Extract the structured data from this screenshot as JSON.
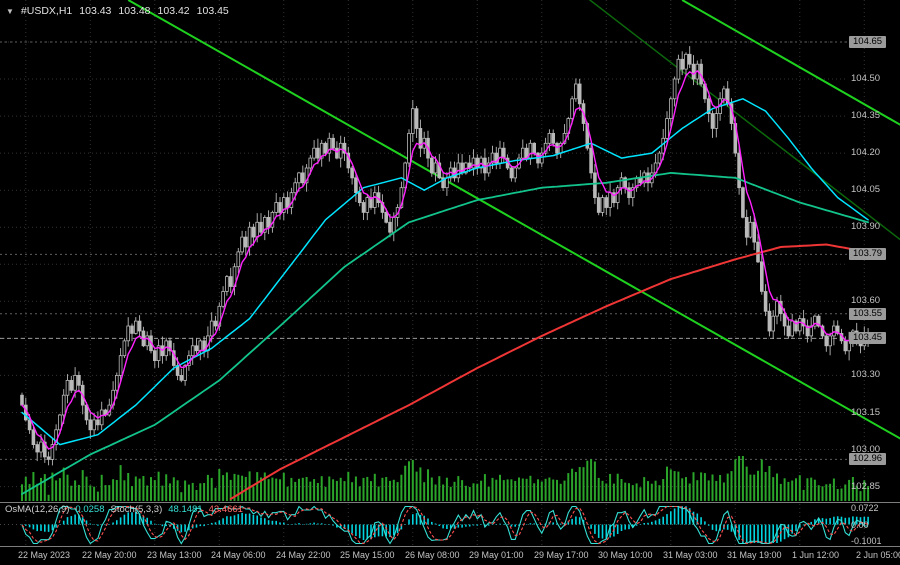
{
  "header": {
    "dropdown_glyph": "▼",
    "symbol": "#USDX,H1",
    "open": "103.43",
    "high": "103.48",
    "low": "103.42",
    "close": "103.45"
  },
  "colors": {
    "grid": "#333333",
    "candle": "#b9b9b9",
    "bull_fill": "#000000",
    "bear_fill": "#b9b9b9",
    "separator": "#7d7d7d",
    "level_line": "#5f5f5f",
    "current_price_line": "#9a9a9a",
    "box_bg": "#9b9b9b",
    "axis_text": "#c4c4c4"
  },
  "price_axis": {
    "labels": [
      {
        "text": "104.65",
        "price": 104.65,
        "boxed": true
      },
      {
        "text": "104.50",
        "price": 104.5,
        "boxed": false
      },
      {
        "text": "104.35",
        "price": 104.35,
        "boxed": false
      },
      {
        "text": "104.20",
        "price": 104.2,
        "boxed": false
      },
      {
        "text": "104.05",
        "price": 104.05,
        "boxed": false
      },
      {
        "text": "103.90",
        "price": 103.9,
        "boxed": false
      },
      {
        "text": "103.79",
        "price": 103.79,
        "boxed": true
      },
      {
        "text": "103.60",
        "price": 103.6,
        "boxed": false
      },
      {
        "text": "103.55",
        "price": 103.55,
        "boxed": true
      },
      {
        "text": "103.45",
        "price": 103.45,
        "boxed": true
      },
      {
        "text": "103.30",
        "price": 103.3,
        "boxed": false
      },
      {
        "text": "103.15",
        "price": 103.15,
        "boxed": false
      },
      {
        "text": "103.00",
        "price": 103.0,
        "boxed": false
      },
      {
        "text": "102.96",
        "price": 102.96,
        "boxed": true
      },
      {
        "text": "102.85",
        "price": 102.85,
        "boxed": false
      }
    ]
  },
  "time_axis": {
    "labels": [
      {
        "text": "22 May 2023",
        "idx": 1
      },
      {
        "text": "22 May 20:00",
        "idx": 18
      },
      {
        "text": "23 May 13:00",
        "idx": 35
      },
      {
        "text": "24 May 06:00",
        "idx": 52
      },
      {
        "text": "24 May 22:00",
        "idx": 69
      },
      {
        "text": "25 May 15:00",
        "idx": 86
      },
      {
        "text": "26 May 08:00",
        "idx": 103
      },
      {
        "text": "29 May 01:00",
        "idx": 120
      },
      {
        "text": "29 May 17:00",
        "idx": 137
      },
      {
        "text": "30 May 10:00",
        "idx": 154
      },
      {
        "text": "31 May 03:00",
        "idx": 171
      },
      {
        "text": "31 May 19:00",
        "idx": 188
      },
      {
        "text": "1 Jun 12:00",
        "idx": 205
      },
      {
        "text": "2 Jun 05:00",
        "idx": 222
      }
    ]
  },
  "indicator": {
    "osma_label": "OsMA(12,26,9)",
    "osma_value": "0.0258",
    "stoch_label": "Stoch(5,3,3)",
    "stoch_value_k": "48.1481",
    "stoch_value_d": "43.4661",
    "axis": [
      {
        "text": "0.0722",
        "pos": "max"
      },
      {
        "text": "0.00",
        "pos": "zero"
      },
      {
        "text": "-0.1001",
        "pos": "min"
      }
    ]
  },
  "chart_data": {
    "type": "candlestick",
    "symbol": "#USDX",
    "period": "H1",
    "title": "#USDX,H1 103.43 103.48 103.42 103.45",
    "ylim": [
      102.78,
      104.82
    ],
    "grid_prices": [
      102.85,
      103.0,
      103.15,
      103.3,
      103.45,
      103.6,
      103.75,
      103.9,
      104.05,
      104.2,
      104.35,
      104.5,
      104.65
    ],
    "levels": [
      104.65,
      103.79,
      103.55,
      102.96
    ],
    "current_price": 103.45,
    "first_open": 103.22,
    "closes": [
      103.18,
      103.12,
      103.08,
      103.02,
      102.99,
      103.03,
      102.97,
      102.96,
      103.02,
      103.08,
      103.14,
      103.22,
      103.28,
      103.24,
      103.3,
      103.26,
      103.18,
      103.12,
      103.08,
      103.12,
      103.1,
      103.16,
      103.14,
      103.18,
      103.24,
      103.3,
      103.38,
      103.44,
      103.5,
      103.47,
      103.52,
      103.48,
      103.42,
      103.46,
      103.4,
      103.36,
      103.42,
      103.38,
      103.44,
      103.4,
      103.34,
      103.3,
      103.28,
      103.34,
      103.38,
      103.42,
      103.4,
      103.44,
      103.4,
      103.46,
      103.52,
      103.5,
      103.58,
      103.64,
      103.7,
      103.66,
      103.74,
      103.8,
      103.86,
      103.82,
      103.9,
      103.86,
      103.92,
      103.88,
      103.94,
      103.9,
      103.96,
      104.0,
      103.96,
      104.02,
      103.98,
      104.04,
      104.08,
      104.12,
      104.08,
      104.14,
      104.18,
      104.22,
      104.18,
      104.24,
      104.2,
      104.26,
      104.22,
      104.18,
      104.24,
      104.2,
      104.14,
      104.1,
      104.04,
      104.0,
      103.96,
      104.02,
      103.98,
      104.04,
      104.0,
      103.96,
      103.92,
      103.88,
      103.94,
      103.98,
      104.06,
      104.16,
      104.28,
      104.38,
      104.3,
      104.22,
      104.26,
      104.18,
      104.12,
      104.16,
      104.1,
      104.06,
      104.1,
      104.14,
      104.1,
      104.16,
      104.12,
      104.16,
      104.14,
      104.18,
      104.14,
      104.18,
      104.12,
      104.16,
      104.2,
      104.16,
      104.22,
      104.18,
      104.14,
      104.1,
      104.14,
      104.18,
      104.22,
      104.18,
      104.24,
      104.2,
      104.16,
      104.2,
      104.24,
      104.28,
      104.24,
      104.2,
      104.24,
      104.28,
      104.34,
      104.42,
      104.48,
      104.4,
      104.32,
      104.22,
      104.12,
      104.02,
      103.96,
      104.02,
      103.98,
      104.04,
      104.0,
      104.06,
      104.1,
      104.06,
      104.02,
      104.06,
      104.1,
      104.08,
      104.12,
      104.08,
      104.12,
      104.16,
      104.2,
      104.26,
      104.34,
      104.42,
      104.5,
      104.58,
      104.54,
      104.6,
      104.56,
      104.5,
      104.56,
      104.48,
      104.42,
      104.36,
      104.3,
      104.36,
      104.42,
      104.46,
      104.4,
      104.32,
      104.2,
      104.06,
      103.94,
      103.86,
      103.92,
      103.84,
      103.76,
      103.64,
      103.56,
      103.48,
      103.54,
      103.6,
      103.55,
      103.5,
      103.46,
      103.52,
      103.48,
      103.53,
      103.5,
      103.46,
      103.5,
      103.54,
      103.5,
      103.46,
      103.42,
      103.46,
      103.5,
      103.47,
      103.44,
      103.4,
      103.44,
      103.48,
      103.44,
      103.42,
      103.46,
      103.45
    ],
    "volume_color": "#2aa52a",
    "moving_averages": [
      {
        "name": "ma-long-red",
        "color": "#ef3535",
        "width": 2,
        "keypoints": [
          [
            55,
            102.8
          ],
          [
            68,
            102.92
          ],
          [
            85,
            103.05
          ],
          [
            102,
            103.18
          ],
          [
            120,
            103.33
          ],
          [
            137,
            103.46
          ],
          [
            154,
            103.58
          ],
          [
            171,
            103.69
          ],
          [
            188,
            103.77
          ],
          [
            200,
            103.82
          ],
          [
            212,
            103.83
          ],
          [
            223,
            103.8
          ]
        ]
      },
      {
        "name": "ma-slow-green",
        "color": "#12c48b",
        "width": 1.8,
        "keypoints": [
          [
            0,
            102.82
          ],
          [
            18,
            102.98
          ],
          [
            35,
            103.1
          ],
          [
            52,
            103.28
          ],
          [
            68,
            103.5
          ],
          [
            85,
            103.74
          ],
          [
            102,
            103.92
          ],
          [
            120,
            104.01
          ],
          [
            137,
            104.06
          ],
          [
            154,
            104.08
          ],
          [
            171,
            104.12
          ],
          [
            188,
            104.1
          ],
          [
            205,
            104.0
          ],
          [
            223,
            103.92
          ]
        ]
      },
      {
        "name": "ma-mid-cyan",
        "color": "#00e5ff",
        "width": 1.5,
        "keypoints": [
          [
            0,
            103.15
          ],
          [
            10,
            103.02
          ],
          [
            20,
            103.06
          ],
          [
            30,
            103.18
          ],
          [
            40,
            103.33
          ],
          [
            50,
            103.41
          ],
          [
            60,
            103.53
          ],
          [
            70,
            103.73
          ],
          [
            80,
            103.93
          ],
          [
            90,
            104.06
          ],
          [
            100,
            104.1
          ],
          [
            106,
            104.05
          ],
          [
            112,
            104.1
          ],
          [
            120,
            104.14
          ],
          [
            130,
            104.17
          ],
          [
            140,
            104.19
          ],
          [
            150,
            104.24
          ],
          [
            158,
            104.18
          ],
          [
            166,
            104.2
          ],
          [
            174,
            104.3
          ],
          [
            182,
            104.38
          ],
          [
            190,
            104.42
          ],
          [
            196,
            104.37
          ],
          [
            202,
            104.26
          ],
          [
            208,
            104.14
          ],
          [
            215,
            104.02
          ],
          [
            223,
            103.93
          ]
        ]
      },
      {
        "name": "ma-fast-magenta",
        "color": "#ff22ff",
        "width": 1.4,
        "type": "ema",
        "period": 5
      }
    ],
    "trendlines": [
      {
        "name": "descending-channel-line-a",
        "color": "#1fd11f",
        "width": 2,
        "points": [
          [
            28,
            104.82
          ],
          [
            232,
            103.04
          ]
        ]
      },
      {
        "name": "descending-channel-line-b",
        "color": "#1fd11f",
        "width": 2,
        "points": [
          [
            174,
            104.82
          ],
          [
            240,
            104.24
          ]
        ]
      },
      {
        "name": "descending-trendline-dark",
        "color": "#0c670c",
        "width": 1.5,
        "points": [
          [
            148,
            104.84
          ],
          [
            234,
            103.82
          ]
        ]
      }
    ],
    "oscillators": {
      "osma": {
        "fast": 12,
        "slow": 26,
        "signal": 9,
        "color": "#00d5e0",
        "current": 0.0258
      },
      "stoch": {
        "k_period": 5,
        "d_period": 3,
        "slowing": 3,
        "k_color": "#35e0d5",
        "d_color": "#ff5050",
        "k_current": 48.1481,
        "d_current": 43.4661
      },
      "axis_max": 0.0722,
      "axis_min": -0.1001
    }
  }
}
